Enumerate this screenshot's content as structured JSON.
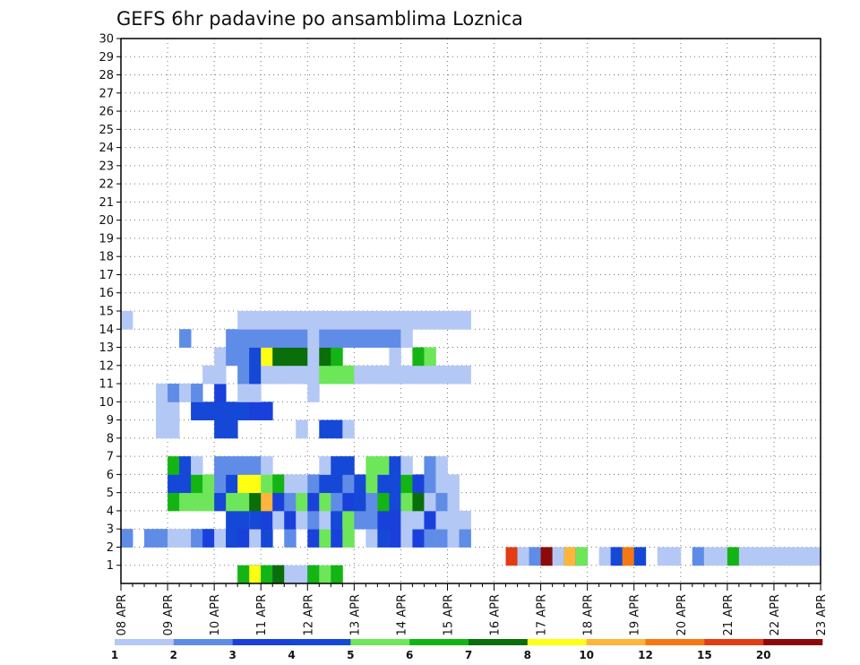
{
  "chart_data": {
    "type": "heatmap",
    "title": "GEFS 6hr padavine po ansamblima Loznica",
    "xlabel": "",
    "ylabel": "",
    "y_ticks": [
      "1",
      "2",
      "3",
      "4",
      "5",
      "6",
      "7",
      "8",
      "9",
      "10",
      "11",
      "12",
      "13",
      "14",
      "15",
      "16",
      "17",
      "18",
      "19",
      "20",
      "21",
      "22",
      "23",
      "24",
      "25",
      "26",
      "27",
      "28",
      "29",
      "30"
    ],
    "x_ticks": [
      "08 APR",
      "09 APR",
      "10 APR",
      "11 APR",
      "12 APR",
      "13 APR",
      "14 APR",
      "15 APR",
      "16 APR",
      "17 APR",
      "18 APR",
      "19 APR",
      "20 APR",
      "21 APR",
      "22 APR",
      "23 APR"
    ],
    "x_range": [
      "08 APR 00Z",
      "23 APR 00Z"
    ],
    "y_range": [
      0,
      30
    ],
    "grid": true,
    "time_step_hours": 6,
    "legend": {
      "placement": "bottom",
      "thresholds": [
        "1",
        "2",
        "3",
        "4",
        "5",
        "6",
        "7",
        "8",
        "10",
        "12",
        "15",
        "20"
      ],
      "colors": [
        "#b4c8f5",
        "#5f8ce6",
        "#1a40dc",
        "#1548d7",
        "#6ee65a",
        "#14b414",
        "#0a6e0a",
        "#ffff14",
        "#ffb43c",
        "#f57814",
        "#e13c14",
        "#8c0a0a"
      ]
    },
    "cells": [
      [
        0,
        10,
        0
      ],
      [
        0,
        10,
        5
      ],
      [
        0,
        11,
        0
      ],
      [
        0,
        11,
        1
      ],
      [
        0,
        11,
        2
      ],
      [
        0,
        11,
        3
      ],
      [
        0,
        11,
        4
      ],
      [
        0,
        11,
        5
      ],
      [
        0,
        11,
        6
      ],
      [
        0,
        11,
        7
      ],
      [
        0,
        12,
        0
      ],
      [
        0,
        12,
        3
      ],
      [
        0,
        12,
        4
      ],
      [
        0,
        12,
        5
      ],
      [
        0,
        13,
        0
      ],
      [
        0,
        13,
        3
      ],
      [
        0,
        13,
        6
      ],
      [
        0,
        14,
        0
      ],
      [
        0,
        15,
        0
      ],
      [
        0,
        16,
        3
      ],
      [
        0,
        16,
        5
      ],
      [
        0,
        17,
        4
      ],
      [
        0,
        18,
        4
      ],
      [
        0,
        18,
        5
      ],
      [
        1,
        33,
        8
      ],
      [
        1,
        33,
        10
      ],
      [
        1,
        34,
        0
      ],
      [
        1,
        35,
        0
      ],
      [
        1,
        35,
        1
      ],
      [
        1,
        36,
        0
      ],
      [
        1,
        36,
        8
      ],
      [
        1,
        36,
        10
      ],
      [
        1,
        36,
        11
      ],
      [
        1,
        37,
        0
      ],
      [
        1,
        38,
        0
      ],
      [
        1,
        38,
        5
      ],
      [
        1,
        38,
        8
      ],
      [
        1,
        39,
        0
      ],
      [
        1,
        39,
        3
      ],
      [
        1,
        39,
        4
      ],
      [
        1,
        41,
        0
      ],
      [
        1,
        42,
        0
      ],
      [
        1,
        42,
        1
      ],
      [
        1,
        42,
        3
      ],
      [
        1,
        43,
        5
      ],
      [
        1,
        43,
        9
      ],
      [
        1,
        44,
        3
      ],
      [
        1,
        46,
        0
      ],
      [
        1,
        47,
        0
      ],
      [
        1,
        49,
        0
      ],
      [
        1,
        49,
        1
      ],
      [
        1,
        50,
        0
      ],
      [
        1,
        51,
        0
      ],
      [
        1,
        52,
        0
      ],
      [
        1,
        52,
        5
      ],
      [
        1,
        53,
        0
      ],
      [
        1,
        54,
        0
      ],
      [
        1,
        55,
        0
      ],
      [
        1,
        56,
        0
      ],
      [
        1,
        57,
        0
      ],
      [
        1,
        58,
        0
      ],
      [
        1,
        59,
        0
      ],
      [
        2,
        0,
        0
      ],
      [
        2,
        0,
        1
      ],
      [
        2,
        2,
        1
      ],
      [
        2,
        3,
        1
      ],
      [
        2,
        4,
        0
      ],
      [
        2,
        5,
        0
      ],
      [
        2,
        6,
        1
      ],
      [
        2,
        7,
        2
      ],
      [
        2,
        8,
        0
      ],
      [
        2,
        9,
        2
      ],
      [
        2,
        9,
        3
      ],
      [
        2,
        10,
        2
      ],
      [
        2,
        11,
        0
      ],
      [
        2,
        12,
        3
      ],
      [
        2,
        14,
        1
      ],
      [
        2,
        16,
        2
      ],
      [
        2,
        17,
        2
      ],
      [
        2,
        17,
        4
      ],
      [
        2,
        18,
        2
      ],
      [
        2,
        19,
        4
      ],
      [
        2,
        21,
        0
      ],
      [
        2,
        22,
        3
      ],
      [
        2,
        23,
        1
      ],
      [
        2,
        23,
        2
      ],
      [
        2,
        24,
        0
      ],
      [
        2,
        25,
        0
      ],
      [
        2,
        25,
        2
      ],
      [
        2,
        26,
        1
      ],
      [
        2,
        27,
        0
      ],
      [
        2,
        27,
        1
      ],
      [
        2,
        28,
        0
      ],
      [
        2,
        29,
        1
      ],
      [
        3,
        9,
        3
      ],
      [
        3,
        10,
        3
      ],
      [
        3,
        11,
        0
      ],
      [
        3,
        11,
        3
      ],
      [
        3,
        12,
        2
      ],
      [
        3,
        13,
        0
      ],
      [
        3,
        14,
        2
      ],
      [
        3,
        15,
        0
      ],
      [
        3,
        16,
        1
      ],
      [
        3,
        17,
        0
      ],
      [
        3,
        18,
        2
      ],
      [
        3,
        18,
        3
      ],
      [
        3,
        19,
        0
      ],
      [
        3,
        19,
        4
      ],
      [
        3,
        20,
        1
      ],
      [
        3,
        21,
        1
      ],
      [
        3,
        22,
        2
      ],
      [
        3,
        23,
        2
      ],
      [
        3,
        24,
        0
      ],
      [
        3,
        25,
        0
      ],
      [
        3,
        26,
        0
      ],
      [
        3,
        26,
        2
      ],
      [
        3,
        27,
        0
      ],
      [
        3,
        28,
        0
      ],
      [
        3,
        29,
        0
      ],
      [
        4,
        4,
        5
      ],
      [
        4,
        5,
        4
      ],
      [
        4,
        6,
        4
      ],
      [
        4,
        7,
        4
      ],
      [
        4,
        8,
        3
      ],
      [
        4,
        9,
        4
      ],
      [
        4,
        10,
        4
      ],
      [
        4,
        11,
        6
      ],
      [
        4,
        12,
        8
      ],
      [
        4,
        13,
        2
      ],
      [
        4,
        14,
        1
      ],
      [
        4,
        15,
        4
      ],
      [
        4,
        16,
        2
      ],
      [
        4,
        17,
        4
      ],
      [
        4,
        18,
        1
      ],
      [
        4,
        19,
        2
      ],
      [
        4,
        20,
        3
      ],
      [
        4,
        21,
        1
      ],
      [
        4,
        22,
        5
      ],
      [
        4,
        23,
        3
      ],
      [
        4,
        24,
        4
      ],
      [
        4,
        25,
        6
      ],
      [
        4,
        26,
        0
      ],
      [
        4,
        27,
        1
      ],
      [
        4,
        28,
        0
      ],
      [
        5,
        4,
        3
      ],
      [
        5,
        5,
        3
      ],
      [
        5,
        6,
        5
      ],
      [
        5,
        7,
        4
      ],
      [
        5,
        8,
        1
      ],
      [
        5,
        9,
        3
      ],
      [
        5,
        10,
        7
      ],
      [
        5,
        11,
        7
      ],
      [
        5,
        12,
        4
      ],
      [
        5,
        13,
        5
      ],
      [
        5,
        14,
        0
      ],
      [
        5,
        15,
        0
      ],
      [
        5,
        16,
        1
      ],
      [
        5,
        17,
        3
      ],
      [
        5,
        18,
        3
      ],
      [
        5,
        19,
        1
      ],
      [
        5,
        20,
        3
      ],
      [
        5,
        21,
        4
      ],
      [
        5,
        22,
        3
      ],
      [
        5,
        23,
        3
      ],
      [
        5,
        24,
        5
      ],
      [
        5,
        25,
        2
      ],
      [
        5,
        26,
        1
      ],
      [
        5,
        27,
        0
      ],
      [
        5,
        28,
        0
      ],
      [
        6,
        4,
        5
      ],
      [
        6,
        5,
        3
      ],
      [
        6,
        6,
        0
      ],
      [
        6,
        8,
        1
      ],
      [
        6,
        9,
        1
      ],
      [
        6,
        10,
        1
      ],
      [
        6,
        11,
        1
      ],
      [
        6,
        12,
        0
      ],
      [
        6,
        17,
        0
      ],
      [
        6,
        18,
        3
      ],
      [
        6,
        19,
        3
      ],
      [
        6,
        21,
        4
      ],
      [
        6,
        22,
        4
      ],
      [
        6,
        23,
        3
      ],
      [
        6,
        24,
        0
      ],
      [
        6,
        26,
        1
      ],
      [
        6,
        27,
        0
      ],
      [
        8,
        3,
        0
      ],
      [
        8,
        4,
        0
      ],
      [
        8,
        8,
        3
      ],
      [
        8,
        9,
        3
      ],
      [
        8,
        15,
        0
      ],
      [
        8,
        17,
        3
      ],
      [
        8,
        18,
        3
      ],
      [
        8,
        19,
        0
      ],
      [
        9,
        3,
        0
      ],
      [
        9,
        4,
        0
      ],
      [
        9,
        6,
        3
      ],
      [
        9,
        7,
        3
      ],
      [
        9,
        8,
        3
      ],
      [
        9,
        9,
        3
      ],
      [
        9,
        10,
        3
      ],
      [
        9,
        11,
        2
      ],
      [
        9,
        12,
        2
      ],
      [
        10,
        3,
        0
      ],
      [
        10,
        4,
        1
      ],
      [
        10,
        5,
        0
      ],
      [
        10,
        6,
        1
      ],
      [
        10,
        8,
        2
      ],
      [
        10,
        10,
        0
      ],
      [
        10,
        11,
        0
      ],
      [
        10,
        16,
        0
      ],
      [
        11,
        7,
        0
      ],
      [
        11,
        8,
        0
      ],
      [
        11,
        10,
        1
      ],
      [
        11,
        11,
        3
      ],
      [
        11,
        12,
        0
      ],
      [
        11,
        13,
        0
      ],
      [
        11,
        14,
        0
      ],
      [
        11,
        15,
        0
      ],
      [
        11,
        16,
        0
      ],
      [
        11,
        17,
        4
      ],
      [
        11,
        18,
        4
      ],
      [
        11,
        19,
        4
      ],
      [
        11,
        20,
        0
      ],
      [
        11,
        21,
        0
      ],
      [
        11,
        22,
        0
      ],
      [
        11,
        23,
        0
      ],
      [
        11,
        24,
        0
      ],
      [
        11,
        25,
        0
      ],
      [
        11,
        26,
        0
      ],
      [
        11,
        27,
        0
      ],
      [
        11,
        28,
        0
      ],
      [
        11,
        29,
        0
      ],
      [
        12,
        8,
        0
      ],
      [
        12,
        9,
        1
      ],
      [
        12,
        10,
        1
      ],
      [
        12,
        11,
        3
      ],
      [
        12,
        12,
        7
      ],
      [
        12,
        13,
        6
      ],
      [
        12,
        14,
        6
      ],
      [
        12,
        15,
        6
      ],
      [
        12,
        16,
        0
      ],
      [
        12,
        17,
        6
      ],
      [
        12,
        18,
        5
      ],
      [
        12,
        23,
        0
      ],
      [
        12,
        25,
        5
      ],
      [
        12,
        26,
        4
      ],
      [
        13,
        5,
        1
      ],
      [
        13,
        9,
        1
      ],
      [
        13,
        10,
        1
      ],
      [
        13,
        11,
        1
      ],
      [
        13,
        12,
        1
      ],
      [
        13,
        13,
        1
      ],
      [
        13,
        14,
        1
      ],
      [
        13,
        15,
        1
      ],
      [
        13,
        16,
        0
      ],
      [
        13,
        17,
        1
      ],
      [
        13,
        18,
        1
      ],
      [
        13,
        19,
        1
      ],
      [
        13,
        20,
        1
      ],
      [
        13,
        21,
        1
      ],
      [
        13,
        22,
        1
      ],
      [
        13,
        23,
        1
      ],
      [
        13,
        24,
        0
      ],
      [
        14,
        0,
        0
      ],
      [
        14,
        10,
        0
      ],
      [
        14,
        11,
        0
      ],
      [
        14,
        12,
        0
      ],
      [
        14,
        13,
        0
      ],
      [
        14,
        14,
        0
      ],
      [
        14,
        15,
        0
      ],
      [
        14,
        16,
        0
      ],
      [
        14,
        17,
        0
      ],
      [
        14,
        18,
        0
      ],
      [
        14,
        19,
        0
      ],
      [
        14,
        20,
        0
      ],
      [
        14,
        21,
        0
      ],
      [
        14,
        22,
        0
      ],
      [
        14,
        23,
        0
      ],
      [
        14,
        24,
        0
      ],
      [
        14,
        25,
        0
      ],
      [
        14,
        26,
        0
      ],
      [
        14,
        27,
        0
      ],
      [
        14,
        28,
        0
      ],
      [
        14,
        29,
        0
      ]
    ]
  }
}
